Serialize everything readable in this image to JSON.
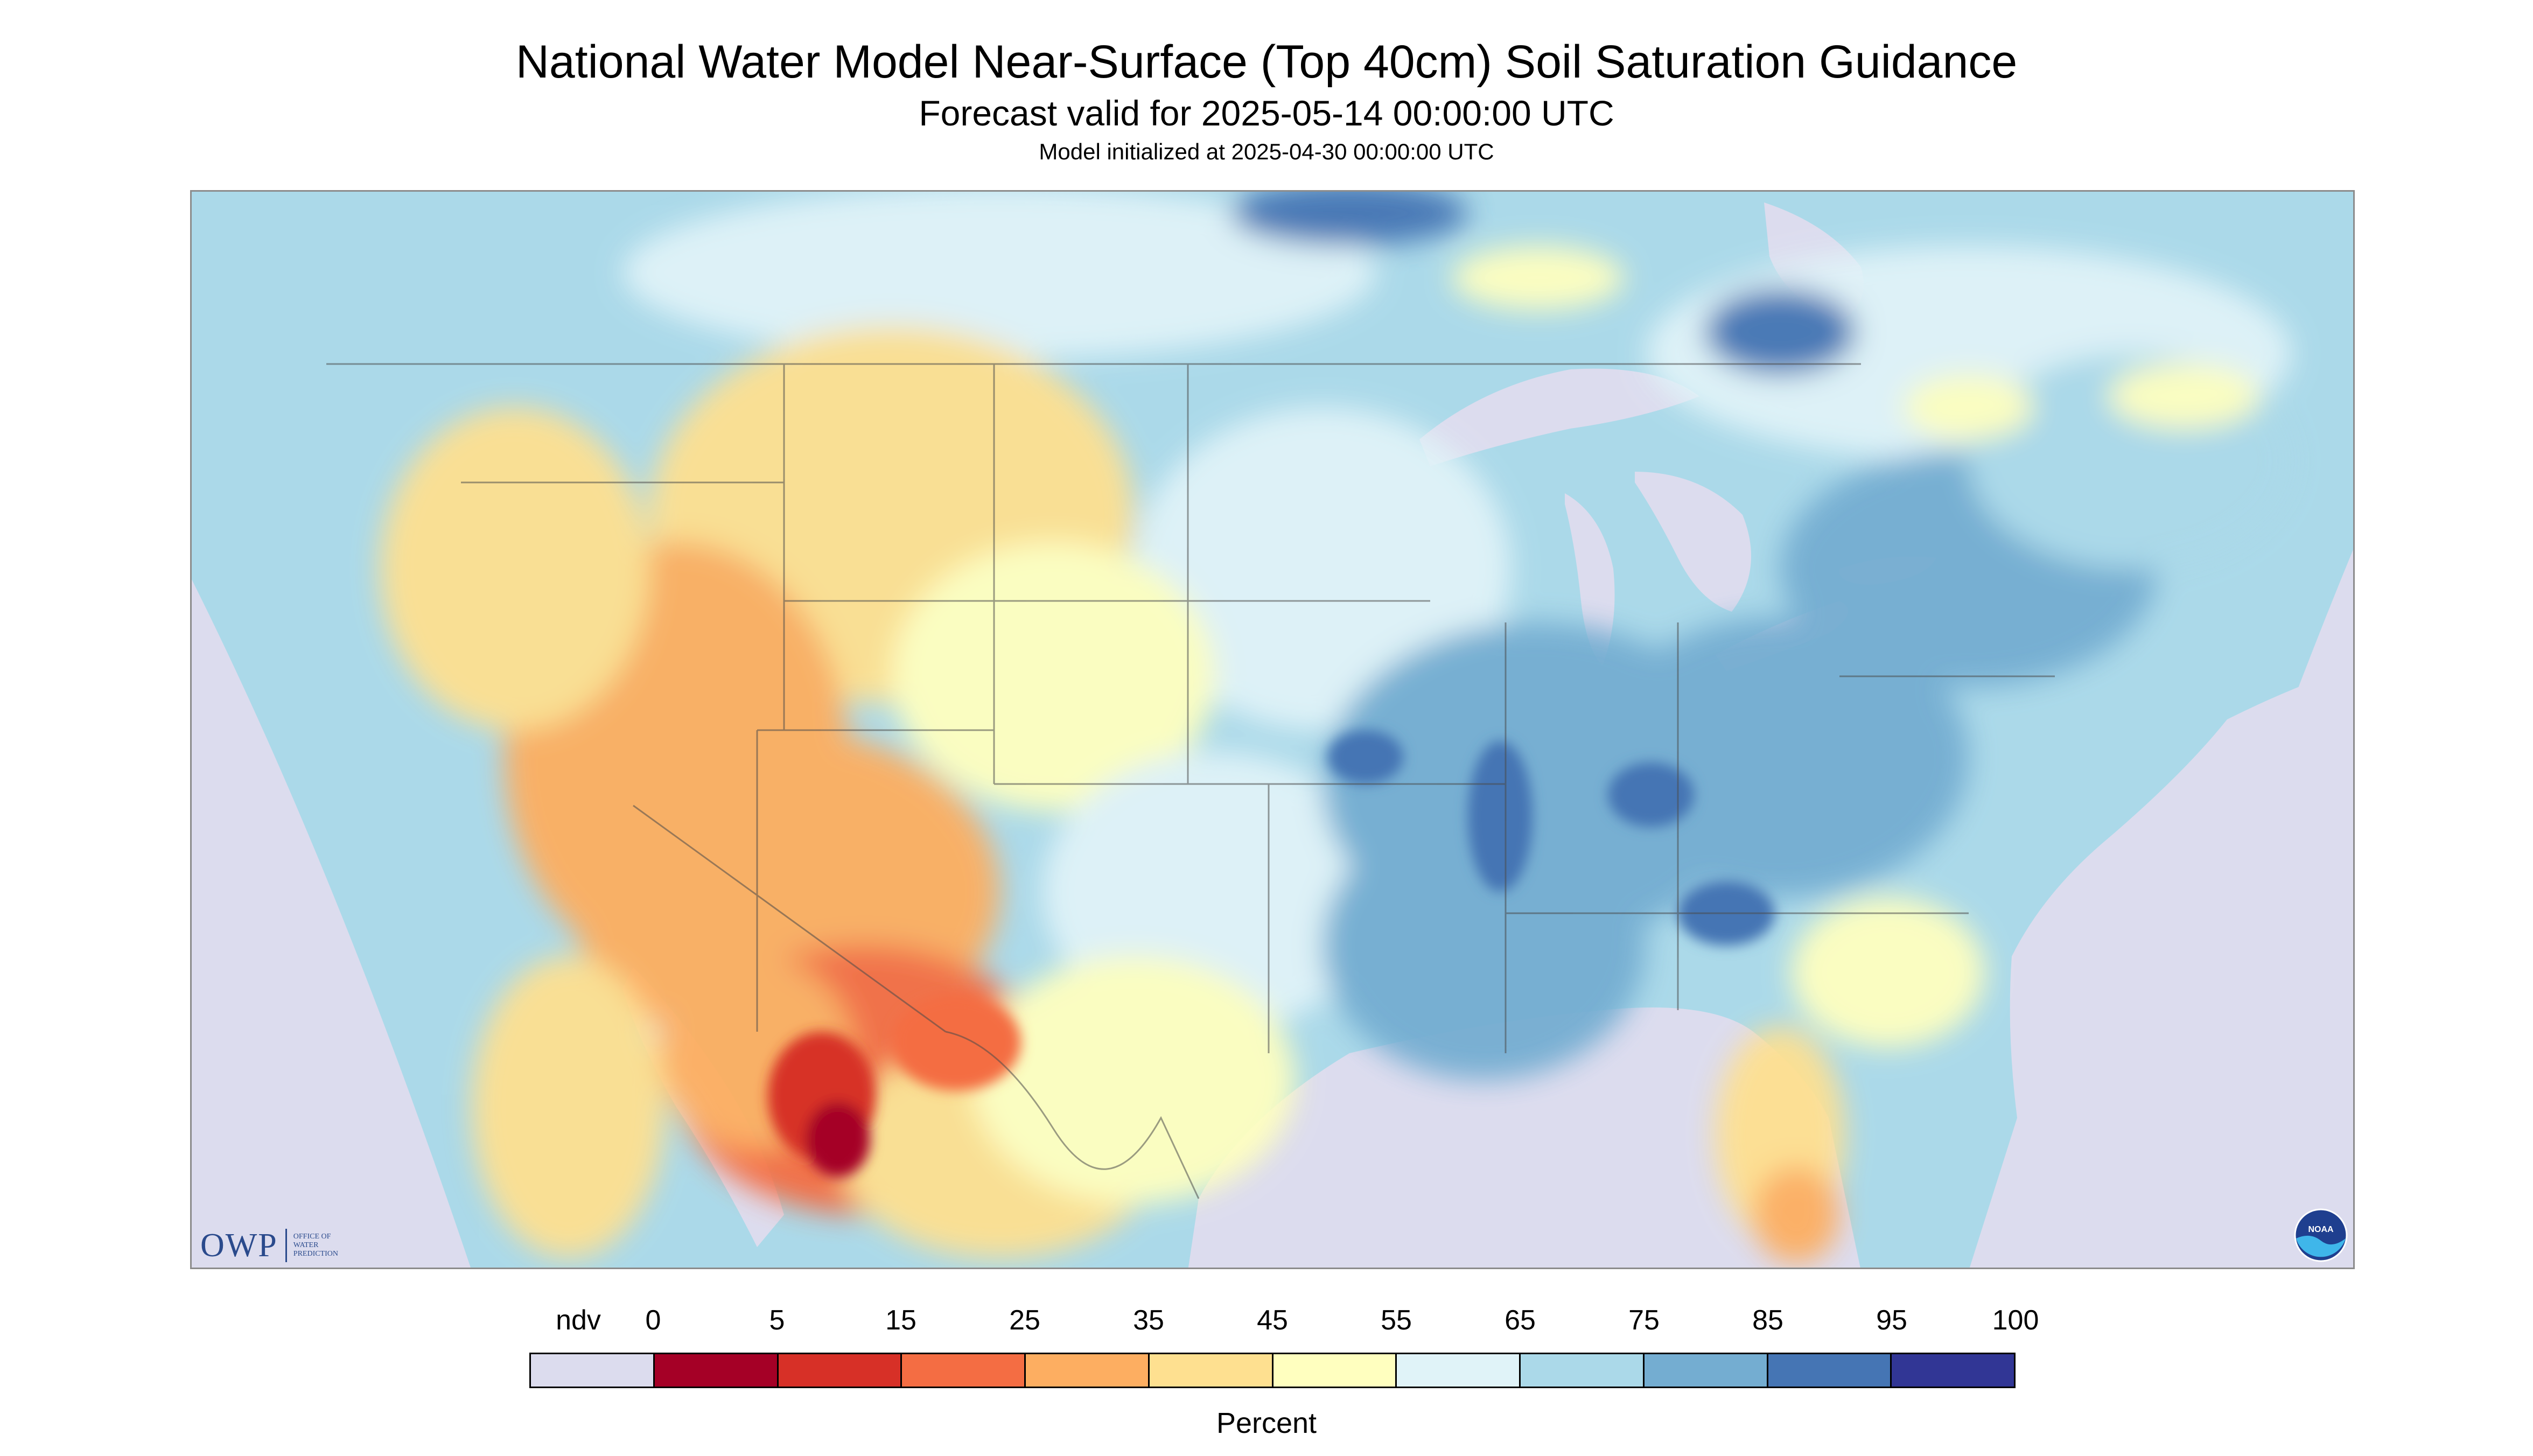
{
  "header": {
    "title": "National Water Model Near-Surface (Top 40cm) Soil Saturation Guidance",
    "subtitle": "Forecast valid for 2025-05-14 00:00:00 UTC",
    "init": "Model initialized at 2025-04-30 00:00:00 UTC"
  },
  "legend": {
    "unit": "Percent",
    "ticks": [
      "ndv",
      "0",
      "5",
      "15",
      "25",
      "35",
      "45",
      "55",
      "65",
      "75",
      "85",
      "95",
      "100"
    ],
    "colors": [
      "#dcdcee",
      "#a50026",
      "#d73027",
      "#f46d43",
      "#fdae61",
      "#fee090",
      "#ffffbf",
      "#e0f3f8",
      "#abd9e9",
      "#74add1",
      "#4575b4",
      "#313695"
    ]
  },
  "logos": {
    "owp_main": "OWP",
    "owp_line1": "OFFICE OF",
    "owp_line2": "WATER",
    "owp_line3": "PREDICTION",
    "noaa_text": "NOAA"
  },
  "map_colors": {
    "nodata": "#dcdcee",
    "water": "#dcdcee",
    "land_base": "#abd9e9"
  }
}
